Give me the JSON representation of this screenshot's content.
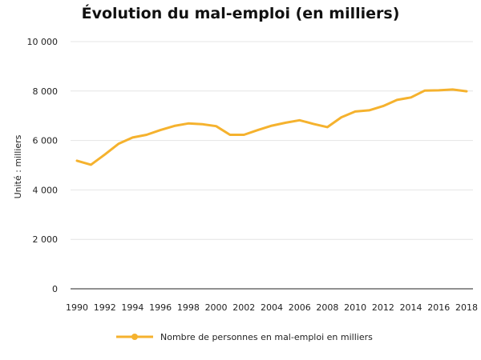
{
  "chart_data": {
    "type": "line",
    "title": "Évolution du mal-emploi (en milliers)",
    "xlabel": "",
    "ylabel": "Unité : milliers",
    "x": [
      1990,
      1991,
      1992,
      1993,
      1994,
      1995,
      1996,
      1997,
      1998,
      1999,
      2000,
      2001,
      2002,
      2003,
      2004,
      2005,
      2006,
      2007,
      2008,
      2009,
      2010,
      2011,
      2012,
      2013,
      2014,
      2015,
      2016,
      2017,
      2018
    ],
    "x_ticks": [
      1990,
      1992,
      1994,
      1996,
      1998,
      2000,
      2002,
      2004,
      2006,
      2008,
      2010,
      2012,
      2014,
      2016,
      2018
    ],
    "y_ticks": [
      0,
      2000,
      4000,
      6000,
      8000,
      10000
    ],
    "y_tick_labels": [
      "0",
      "2 000",
      "4 000",
      "6 000",
      "8 000",
      "10 000"
    ],
    "ylim": [
      0,
      10000
    ],
    "xlim": [
      1990,
      2018
    ],
    "grid": "horizontal",
    "legend_position": "bottom",
    "series": [
      {
        "name": "Nombre de personnes en mal-emploi en milliers",
        "color": "#f5b22e",
        "values": [
          5180,
          5020,
          5430,
          5870,
          6120,
          6230,
          6420,
          6590,
          6690,
          6660,
          6580,
          6230,
          6230,
          6420,
          6600,
          6720,
          6820,
          6670,
          6540,
          6940,
          7170,
          7220,
          7390,
          7640,
          7740,
          8020,
          8030,
          8060,
          7990
        ]
      }
    ]
  }
}
